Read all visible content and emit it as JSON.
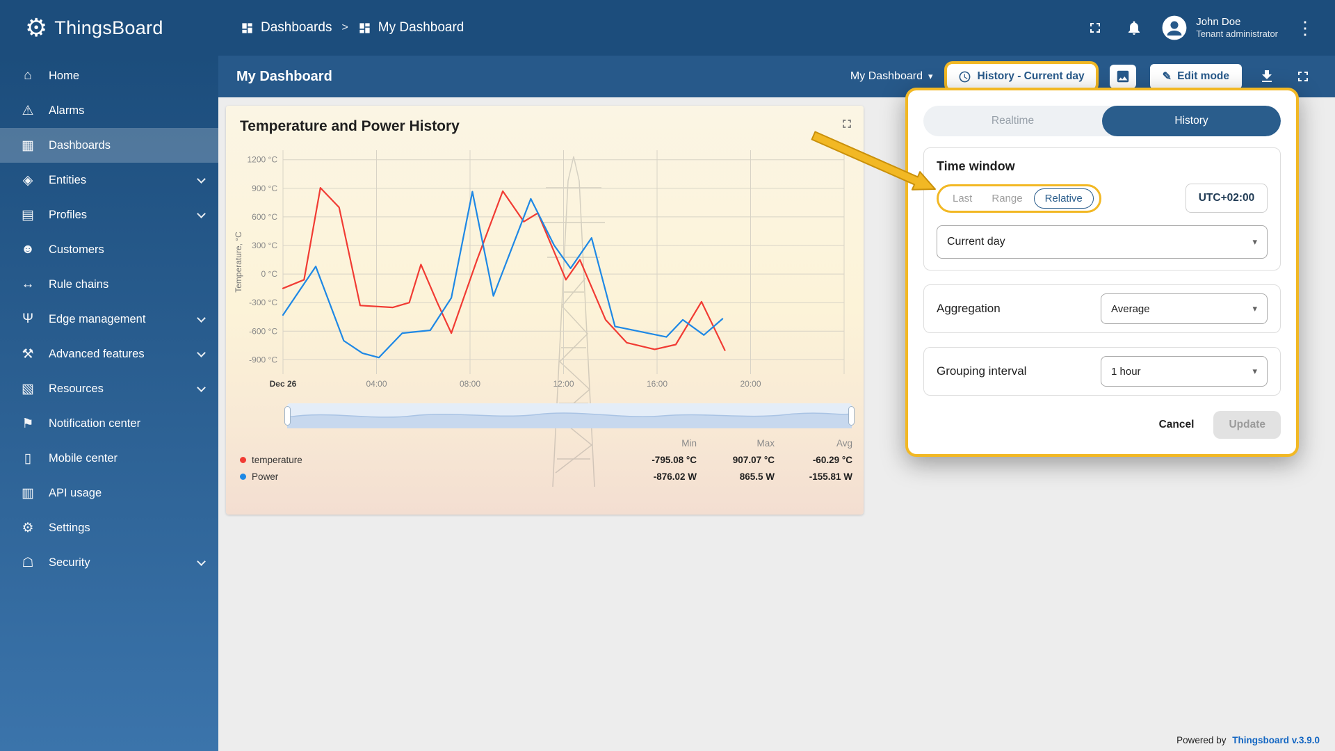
{
  "header": {
    "app_name": "ThingsBoard",
    "breadcrumb": {
      "root": "Dashboards",
      "separator": ">",
      "current": "My Dashboard"
    },
    "user": {
      "name": "John Doe",
      "role": "Tenant administrator"
    }
  },
  "sidebar": {
    "items": [
      {
        "label": "Home",
        "glyph": "⌂"
      },
      {
        "label": "Alarms",
        "glyph": "⚠"
      },
      {
        "label": "Dashboards",
        "glyph": "▦"
      },
      {
        "label": "Entities",
        "glyph": "◈"
      },
      {
        "label": "Profiles",
        "glyph": "▤"
      },
      {
        "label": "Customers",
        "glyph": "☻"
      },
      {
        "label": "Rule chains",
        "glyph": "↔"
      },
      {
        "label": "Edge management",
        "glyph": "Ψ"
      },
      {
        "label": "Advanced features",
        "glyph": "⚒"
      },
      {
        "label": "Resources",
        "glyph": "▧"
      },
      {
        "label": "Notification center",
        "glyph": "⚑"
      },
      {
        "label": "Mobile center",
        "glyph": "▯"
      },
      {
        "label": "API usage",
        "glyph": "▥"
      },
      {
        "label": "Settings",
        "glyph": "⚙"
      },
      {
        "label": "Security",
        "glyph": "☖"
      }
    ]
  },
  "toolbar": {
    "page_title": "My Dashboard",
    "dashboard_select": "My Dashboard",
    "timewindow_button": "History - Current day",
    "edit_button": "Edit mode"
  },
  "widget": {
    "title": "Temperature and Power History",
    "legend": {
      "headers": [
        "Min",
        "Max",
        "Avg"
      ],
      "rows": [
        {
          "name": "temperature",
          "color": "#f13b33",
          "min": "-795.08 °C",
          "max": "907.07 °C",
          "avg": "-60.29 °C"
        },
        {
          "name": "Power",
          "color": "#1e88e5",
          "min": "-876.02 W",
          "max": "865.5 W",
          "avg": "-155.81 W"
        }
      ]
    }
  },
  "chart_data": {
    "type": "line",
    "title": "Temperature and Power History",
    "xlabel": "",
    "ylabel": "Temperature, °C",
    "ylim": [
      -1050,
      1300
    ],
    "yticks": [
      1200,
      900,
      600,
      300,
      0,
      -300,
      -600,
      -900
    ],
    "ytick_suffix": " °C",
    "xlim": [
      0,
      24
    ],
    "xticks": [
      {
        "pos": 0,
        "label": "Dec 26"
      },
      {
        "pos": 4,
        "label": "04:00"
      },
      {
        "pos": 8,
        "label": "08:00"
      },
      {
        "pos": 12,
        "label": "12:00"
      },
      {
        "pos": 16,
        "label": "16:00"
      },
      {
        "pos": 20,
        "label": "20:00"
      }
    ],
    "grid": true,
    "legend_position": "bottom",
    "series": [
      {
        "name": "temperature",
        "color": "#f13b33",
        "points": [
          [
            0,
            -150
          ],
          [
            0.9,
            -60
          ],
          [
            1.6,
            905
          ],
          [
            2.4,
            700
          ],
          [
            3.3,
            -330
          ],
          [
            4.7,
            -350
          ],
          [
            5.4,
            -300
          ],
          [
            5.9,
            100
          ],
          [
            6.6,
            -300
          ],
          [
            7.2,
            -620
          ],
          [
            8.3,
            150
          ],
          [
            9.4,
            870
          ],
          [
            10.3,
            550
          ],
          [
            10.9,
            640
          ],
          [
            12.1,
            -60
          ],
          [
            12.7,
            150
          ],
          [
            13.8,
            -480
          ],
          [
            14.7,
            -720
          ],
          [
            15.9,
            -790
          ],
          [
            16.8,
            -740
          ],
          [
            17.9,
            -290
          ],
          [
            18.9,
            -800
          ]
        ]
      },
      {
        "name": "Power",
        "color": "#1e88e5",
        "points": [
          [
            0,
            -430
          ],
          [
            1.4,
            80
          ],
          [
            2.6,
            -700
          ],
          [
            3.4,
            -830
          ],
          [
            4.1,
            -876
          ],
          [
            5.1,
            -620
          ],
          [
            6.3,
            -590
          ],
          [
            7.2,
            -250
          ],
          [
            8.1,
            865
          ],
          [
            9.0,
            -230
          ],
          [
            10.6,
            790
          ],
          [
            11.6,
            300
          ],
          [
            12.3,
            60
          ],
          [
            13.2,
            380
          ],
          [
            14.2,
            -550
          ],
          [
            15.2,
            -600
          ],
          [
            16.4,
            -660
          ],
          [
            17.1,
            -480
          ],
          [
            18.0,
            -640
          ],
          [
            18.8,
            -470
          ]
        ]
      }
    ]
  },
  "popup": {
    "tabs": {
      "realtime": "Realtime",
      "history": "History",
      "selected": "History"
    },
    "time_window": {
      "heading": "Time window",
      "modes": [
        "Last",
        "Range",
        "Relative"
      ],
      "selected_mode": "Relative",
      "timezone": "UTC+02:00",
      "interval": "Current day"
    },
    "aggregation": {
      "label": "Aggregation",
      "value": "Average"
    },
    "grouping": {
      "label": "Grouping interval",
      "value": "1 hour"
    },
    "actions": {
      "cancel": "Cancel",
      "update": "Update"
    }
  },
  "footer": {
    "powered_by": "Powered by",
    "version_link": "Thingsboard v.3.9.0"
  },
  "colors": {
    "highlight": "#f2b824",
    "primary": "#2a5d8c"
  }
}
